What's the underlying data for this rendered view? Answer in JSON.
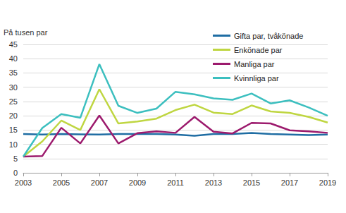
{
  "chart_data": {
    "type": "line",
    "ylabel": "På tusen par",
    "x": [
      2003,
      2004,
      2005,
      2006,
      2007,
      2008,
      2009,
      2010,
      2011,
      2012,
      2013,
      2014,
      2015,
      2016,
      2017,
      2018,
      2019
    ],
    "xlim": [
      2003,
      2019
    ],
    "xticks": [
      2003,
      2005,
      2007,
      2009,
      2011,
      2013,
      2015,
      2017,
      2019
    ],
    "ylim": [
      0,
      45
    ],
    "yticks": [
      0,
      5,
      10,
      15,
      20,
      25,
      30,
      35,
      40,
      45
    ],
    "grid": true,
    "legend": "upper right",
    "series": [
      {
        "name": "Gifta par, tvåkönade",
        "color": "#1f6da3",
        "values": [
          13.6,
          13.4,
          13.6,
          13.5,
          13.4,
          13.6,
          13.6,
          13.6,
          13.4,
          13.0,
          13.6,
          13.6,
          14.0,
          13.6,
          13.4,
          13.2,
          13.4
        ]
      },
      {
        "name": "Enkönade par",
        "color": "#bfd641",
        "values": [
          5.7,
          11.0,
          18.3,
          15.0,
          29.3,
          17.3,
          18.0,
          19.0,
          22.0,
          23.9,
          21.1,
          20.6,
          23.6,
          21.5,
          21.0,
          19.6,
          17.6
        ]
      },
      {
        "name": "Manliga par",
        "color": "#9c1a6d",
        "values": [
          5.7,
          5.9,
          15.8,
          10.3,
          20.1,
          10.3,
          13.9,
          14.5,
          14.0,
          19.6,
          14.4,
          13.8,
          17.5,
          17.3,
          14.9,
          14.5,
          14.0
        ]
      },
      {
        "name": "Kvinnliga par",
        "color": "#3cbfbf",
        "values": [
          5.7,
          15.7,
          20.6,
          19.3,
          38.1,
          23.5,
          21.0,
          22.5,
          28.4,
          27.5,
          26.1,
          25.6,
          27.8,
          24.3,
          25.4,
          22.9,
          20.0
        ]
      }
    ]
  }
}
